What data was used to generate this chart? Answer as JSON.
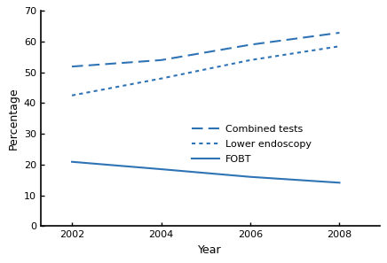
{
  "years": [
    2002,
    2004,
    2006,
    2008
  ],
  "combined_tests": [
    51.9,
    54.0,
    59.0,
    62.9
  ],
  "lower_endoscopy": [
    42.5,
    48.0,
    54.0,
    58.5
  ],
  "fobt": [
    20.9,
    18.5,
    16.0,
    14.1
  ],
  "line_color": "#2E74B5",
  "xlabel": "Year",
  "ylabel": "Percentage",
  "ylim": [
    0,
    70
  ],
  "yticks": [
    0,
    10,
    20,
    30,
    40,
    50,
    60,
    70
  ],
  "xticks": [
    2002,
    2004,
    2006,
    2008
  ],
  "legend_labels": [
    "Combined tests",
    "Lower endoscopy",
    "FOBT"
  ],
  "background_color": "#ffffff",
  "axis_label_fontsize": 9,
  "tick_fontsize": 8,
  "legend_fontsize": 8
}
